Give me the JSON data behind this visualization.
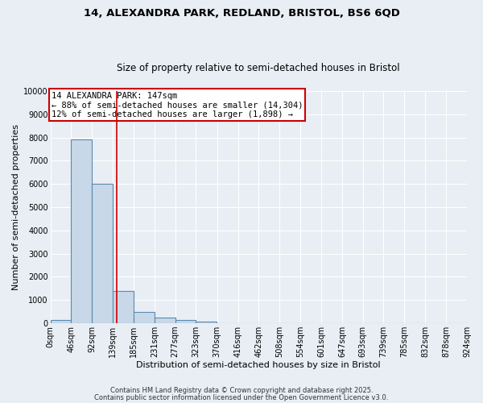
{
  "title_line1": "14, ALEXANDRA PARK, REDLAND, BRISTOL, BS6 6QD",
  "title_line2": "Size of property relative to semi-detached houses in Bristol",
  "xlabel": "Distribution of semi-detached houses by size in Bristol",
  "ylabel": "Number of semi-detached properties",
  "bin_labels": [
    "0sqm",
    "46sqm",
    "92sqm",
    "139sqm",
    "185sqm",
    "231sqm",
    "277sqm",
    "323sqm",
    "370sqm",
    "416sqm",
    "462sqm",
    "508sqm",
    "554sqm",
    "601sqm",
    "647sqm",
    "693sqm",
    "739sqm",
    "785sqm",
    "832sqm",
    "878sqm",
    "924sqm"
  ],
  "bin_edges": [
    0,
    46,
    92,
    139,
    185,
    231,
    277,
    323,
    370,
    416,
    462,
    508,
    554,
    601,
    647,
    693,
    739,
    785,
    832,
    878,
    924
  ],
  "bar_heights": [
    150,
    7900,
    6000,
    1400,
    500,
    250,
    150,
    80,
    10,
    0,
    0,
    0,
    0,
    0,
    0,
    0,
    0,
    0,
    0,
    0
  ],
  "bar_color": "#c8d8e8",
  "bar_edge_color": "#5a8ab0",
  "property_size": 147,
  "red_line_color": "#cc0000",
  "annotation_text": "14 ALEXANDRA PARK: 147sqm\n← 88% of semi-detached houses are smaller (14,304)\n12% of semi-detached houses are larger (1,898) →",
  "annotation_box_color": "white",
  "annotation_box_edge_color": "#cc0000",
  "ylim": [
    0,
    10000
  ],
  "yticks": [
    0,
    1000,
    2000,
    3000,
    4000,
    5000,
    6000,
    7000,
    8000,
    9000,
    10000
  ],
  "bg_color": "#e8eef4",
  "grid_color": "white",
  "footer_line1": "Contains HM Land Registry data © Crown copyright and database right 2025.",
  "footer_line2": "Contains public sector information licensed under the Open Government Licence v3.0.",
  "title_fontsize": 9.5,
  "subtitle_fontsize": 8.5,
  "axis_label_fontsize": 8,
  "tick_fontsize": 7,
  "annotation_fontsize": 7.5,
  "footer_fontsize": 6
}
